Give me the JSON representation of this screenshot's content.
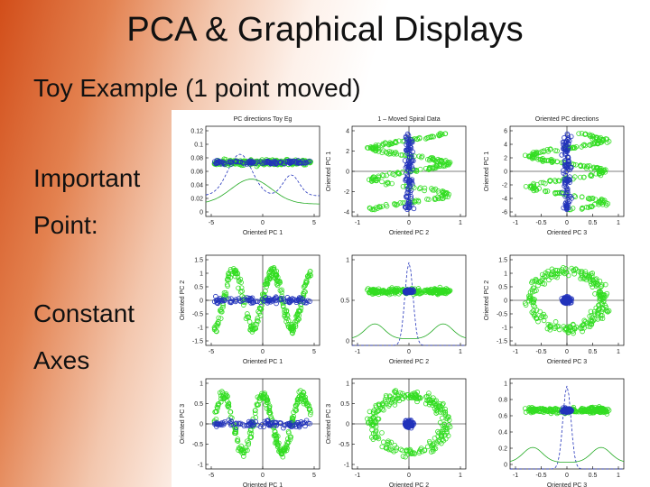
{
  "header": {
    "title": "PCA & Graphical Displays",
    "subtitle": "Toy Example   (1 point moved)"
  },
  "body": {
    "lines": [
      "Important",
      "Point:",
      "Constant",
      "Axes"
    ]
  },
  "figure": {
    "panels": [
      {
        "title": "PC directions Toy Eg",
        "xlabel": "Oriented PC 1",
        "xticks": [
          "-5",
          "0",
          "5"
        ],
        "yticks": [
          "0.12",
          "0.1",
          "0.08",
          "0.06",
          "0.04",
          "0.02",
          "0"
        ]
      },
      {
        "title": "1 – Moved Spiral Data",
        "xlabel": "Oriented PC 2",
        "ylabel": "Oriented PC 1",
        "xticks": [
          "-1",
          "0",
          "1"
        ],
        "yticks": [
          "4",
          "2",
          "0",
          "-2",
          "-4"
        ]
      },
      {
        "title": "Oriented PC directions",
        "xlabel": "Oriented PC 3",
        "ylabel": "Oriented PC 1",
        "xticks": [
          "-1",
          "-0.5",
          "0",
          "0.5",
          "1"
        ],
        "yticks": [
          "6",
          "4",
          "2",
          "0",
          "-2",
          "-4",
          "-6"
        ]
      },
      {
        "xlabel": "Oriented PC 1",
        "ylabel": "Oriented PC 2",
        "xticks": [
          "-5",
          "0",
          "5"
        ],
        "yticks": [
          "1.5",
          "1",
          "0.5",
          "0",
          "-0.5",
          "-1",
          "-1.5"
        ]
      },
      {
        "xlabel": "Oriented PC 2",
        "xticks": [
          "-1",
          "0",
          "1"
        ],
        "yticks": [
          "1",
          "0.5",
          "0"
        ]
      },
      {
        "xlabel": "Oriented PC 3",
        "ylabel": "Oriented PC 2",
        "xticks": [
          "-1",
          "-0.5",
          "0",
          "0.5",
          "1"
        ],
        "yticks": [
          "1.5",
          "1",
          "0.5",
          "0",
          "-0.5",
          "-1",
          "-1.5"
        ]
      },
      {
        "xlabel": "Oriented PC 1",
        "ylabel": "Oriented PC 3",
        "xticks": [
          "-5",
          "0",
          "5"
        ],
        "yticks": [
          "1",
          "0.5",
          "0",
          "-0.5",
          "-1"
        ]
      },
      {
        "xlabel": "Oriented PC 2",
        "ylabel": "Oriented PC 3",
        "xticks": [
          "-1",
          "0",
          "1"
        ],
        "yticks": [
          "1",
          "0.5",
          "0",
          "-0.5",
          "-1"
        ]
      },
      {
        "xlabel": "Oriented PC 3",
        "xticks": [
          "-1",
          "-0.5",
          "0",
          "0.5",
          "1"
        ],
        "yticks": [
          "1",
          "0.8",
          "0.6",
          "0.4",
          "0.2",
          "0"
        ]
      }
    ]
  }
}
